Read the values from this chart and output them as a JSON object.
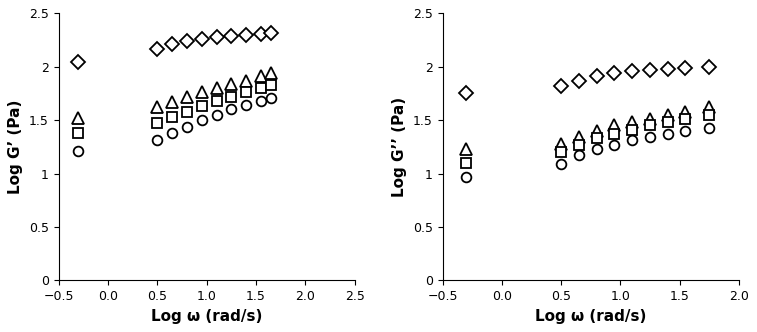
{
  "left_plot": {
    "ylabel": "Log G’ (Pa)",
    "xlabel": "Log ω (rad/s)",
    "xlim": [
      -0.5,
      2.5
    ],
    "ylim": [
      0,
      2.5
    ],
    "xticks": [
      -0.5,
      0,
      0.5,
      1,
      1.5,
      2,
      2.5
    ],
    "yticks": [
      0,
      0.5,
      1,
      1.5,
      2,
      2.5
    ],
    "diamond": {
      "x": [
        -0.3,
        0.5,
        0.65,
        0.8,
        0.95,
        1.1,
        1.25,
        1.4,
        1.55,
        1.65
      ],
      "y": [
        2.04,
        2.17,
        2.21,
        2.24,
        2.26,
        2.28,
        2.29,
        2.3,
        2.31,
        2.32
      ]
    },
    "triangle": {
      "x": [
        -0.3,
        0.5,
        0.65,
        0.8,
        0.95,
        1.1,
        1.25,
        1.4,
        1.55,
        1.65
      ],
      "y": [
        1.52,
        1.62,
        1.67,
        1.72,
        1.76,
        1.8,
        1.84,
        1.87,
        1.91,
        1.94
      ]
    },
    "square": {
      "x": [
        -0.3,
        0.5,
        0.65,
        0.8,
        0.95,
        1.1,
        1.25,
        1.4,
        1.55,
        1.65
      ],
      "y": [
        1.38,
        1.47,
        1.53,
        1.58,
        1.63,
        1.68,
        1.72,
        1.76,
        1.8,
        1.83
      ]
    },
    "circle": {
      "x": [
        -0.3,
        0.5,
        0.65,
        0.8,
        0.95,
        1.1,
        1.25,
        1.4,
        1.55,
        1.65
      ],
      "y": [
        1.21,
        1.31,
        1.38,
        1.44,
        1.5,
        1.55,
        1.6,
        1.64,
        1.68,
        1.71
      ]
    }
  },
  "right_plot": {
    "ylabel": "Log G’’ (Pa)",
    "xlabel": "Log ω (rad/s)",
    "xlim": [
      -0.5,
      2.0
    ],
    "ylim": [
      0,
      2.5
    ],
    "xticks": [
      -0.5,
      0,
      0.5,
      1,
      1.5,
      2
    ],
    "yticks": [
      0,
      0.5,
      1,
      1.5,
      2,
      2.5
    ],
    "diamond": {
      "x": [
        -0.3,
        0.5,
        0.65,
        0.8,
        0.95,
        1.1,
        1.25,
        1.4,
        1.55,
        1.75
      ],
      "y": [
        1.75,
        1.82,
        1.87,
        1.91,
        1.94,
        1.96,
        1.97,
        1.98,
        1.99,
        2.0
      ]
    },
    "triangle": {
      "x": [
        -0.3,
        0.5,
        0.65,
        0.8,
        0.95,
        1.1,
        1.25,
        1.4,
        1.55,
        1.75
      ],
      "y": [
        1.23,
        1.28,
        1.34,
        1.4,
        1.45,
        1.48,
        1.51,
        1.55,
        1.58,
        1.62
      ]
    },
    "square": {
      "x": [
        -0.3,
        0.5,
        0.65,
        0.8,
        0.95,
        1.1,
        1.25,
        1.4,
        1.55,
        1.75
      ],
      "y": [
        1.1,
        1.2,
        1.27,
        1.33,
        1.37,
        1.41,
        1.45,
        1.48,
        1.51,
        1.55
      ]
    },
    "circle": {
      "x": [
        -0.3,
        0.5,
        0.65,
        0.8,
        0.95,
        1.1,
        1.25,
        1.4,
        1.55,
        1.75
      ],
      "y": [
        0.97,
        1.09,
        1.17,
        1.23,
        1.27,
        1.31,
        1.34,
        1.37,
        1.4,
        1.43
      ]
    }
  },
  "marker_size": 7,
  "marker_color": "black",
  "marker_facecolor": "white",
  "marker_edge_width": 1.3,
  "fontsize_label": 11,
  "fontsize_tick": 9
}
